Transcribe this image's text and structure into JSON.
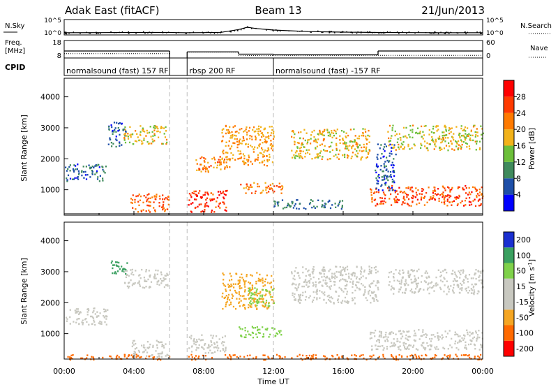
{
  "header": {
    "station": "Adak East (fitACF)",
    "beam": "Beam 13",
    "date": "21/Jun/2013"
  },
  "colors": {
    "frame": "#000000",
    "power_scale": [
      "#0000ff",
      "#1e4fa8",
      "#3f8a5c",
      "#6cbf3a",
      "#f2b21a",
      "#ff7a00",
      "#ff3a00",
      "#ff0000"
    ],
    "velocity_scale": [
      "#ff0000",
      "#ff6a00",
      "#f5a623",
      "#c8c8c0",
      "#c8c8c0",
      "#7fd14a",
      "#3aa060",
      "#1a2fd0"
    ]
  },
  "chart_data": [
    {
      "type": "line",
      "panel": "noise",
      "left_label": "N.Sky",
      "right_label": "N.Search",
      "left_ticks": [
        "10^5",
        "10^0"
      ],
      "right_ticks": [
        "10^5",
        "10^0"
      ],
      "x_hours": [
        0,
        2,
        4,
        6,
        7,
        8,
        9,
        10,
        10.5,
        11,
        12,
        14,
        16,
        18,
        20,
        22,
        24
      ],
      "y_norm": [
        0.14,
        0.15,
        0.16,
        0.16,
        0.14,
        0.15,
        0.17,
        0.35,
        0.5,
        0.42,
        0.32,
        0.22,
        0.18,
        0.16,
        0.15,
        0.14,
        0.14
      ]
    },
    {
      "type": "line",
      "panel": "frequency",
      "left_label_1": "Freq.",
      "left_label_2": "[MHz]",
      "right_label": "Nave",
      "left_ticks": [
        "18",
        "8"
      ],
      "right_ticks": [
        "60",
        "0"
      ],
      "freq_steps": [
        {
          "x0": 0,
          "x1": 6.05,
          "mhz": 12
        },
        {
          "x0": 7.05,
          "x1": 10.0,
          "mhz": 11.5
        },
        {
          "x0": 10.0,
          "x1": 12.0,
          "mhz": 10.2
        },
        {
          "x0": 12.0,
          "x1": 18.0,
          "mhz": 9.8
        },
        {
          "x0": 18.0,
          "x1": 24,
          "mhz": 12
        }
      ],
      "nave_steps": [
        {
          "x0": 0,
          "x1": 6.05,
          "v": 15
        },
        {
          "x0": 7.05,
          "x1": 10.0,
          "v": 20
        },
        {
          "x0": 10.0,
          "x1": 12.0,
          "v": 8
        },
        {
          "x0": 12.0,
          "x1": 24,
          "v": 9
        }
      ]
    },
    {
      "type": "table",
      "panel": "cpid",
      "label": "CPID",
      "segments": [
        {
          "x0": 0,
          "x1": 6.05,
          "text": "normalsound (fast) 157 RF"
        },
        {
          "x0": 7.05,
          "x1": 12.0,
          "text": "rbsp 200 RF"
        },
        {
          "x0": 12.0,
          "x1": 24,
          "text": "normalsound (fast) -157 RF"
        }
      ]
    },
    {
      "type": "heatmap",
      "panel": "power",
      "ylabel": "Slant Range [km]",
      "yticks": [
        1000,
        2000,
        3000,
        4000
      ],
      "ylim": [
        180,
        4600
      ],
      "xlim": [
        0,
        24
      ],
      "colorbar_label": "Power [dB]",
      "colorbar_ticks": [
        4,
        8,
        12,
        16,
        20,
        24,
        28
      ],
      "colorbar_range": [
        0,
        32
      ],
      "regions": [
        {
          "t0": 0.0,
          "t1": 2.5,
          "r0": 1300,
          "r1": 1850,
          "val": 7
        },
        {
          "t0": 2.5,
          "t1": 3.5,
          "r0": 2400,
          "r1": 3200,
          "val": 6
        },
        {
          "t0": 3.4,
          "t1": 6.0,
          "r0": 2500,
          "r1": 3100,
          "val": 18
        },
        {
          "t0": 3.8,
          "t1": 6.0,
          "r0": 300,
          "r1": 900,
          "val": 24
        },
        {
          "t0": 7.1,
          "t1": 9.3,
          "r0": 300,
          "r1": 1000,
          "val": 27
        },
        {
          "t0": 7.5,
          "t1": 9.5,
          "r0": 1600,
          "r1": 2100,
          "val": 22
        },
        {
          "t0": 9.0,
          "t1": 12.0,
          "r0": 1800,
          "r1": 3100,
          "val": 20
        },
        {
          "t0": 10.0,
          "t1": 12.5,
          "r0": 900,
          "r1": 1250,
          "val": 22
        },
        {
          "t0": 13.0,
          "t1": 17.5,
          "r0": 2000,
          "r1": 3000,
          "val": 18
        },
        {
          "t0": 12.0,
          "t1": 16.0,
          "r0": 400,
          "r1": 700,
          "val": 8
        },
        {
          "t0": 17.5,
          "t1": 24.0,
          "r0": 500,
          "r1": 1150,
          "val": 25
        },
        {
          "t0": 18.5,
          "t1": 24.0,
          "r0": 2300,
          "r1": 3100,
          "val": 17
        },
        {
          "t0": 17.8,
          "t1": 19.0,
          "r0": 1000,
          "r1": 2500,
          "val": 6
        }
      ]
    },
    {
      "type": "heatmap",
      "panel": "velocity",
      "ylabel": "Slant Range [km]",
      "yticks": [
        1000,
        2000,
        3000,
        4000
      ],
      "ylim": [
        180,
        4600
      ],
      "xlim": [
        0,
        24
      ],
      "xticks": [
        "00:00",
        "04:00",
        "08:00",
        "12:00",
        "16:00",
        "20:00",
        "00:00"
      ],
      "xlabel": "Time UT",
      "colorbar_label": "Velocity [m s",
      "colorbar_label_superscript": "-1",
      "colorbar_ticks": [
        "-200",
        "-100",
        "-50",
        "-15",
        "15",
        "50",
        "100",
        "200"
      ],
      "regions": [
        {
          "t0": 0.0,
          "t1": 2.5,
          "r0": 1300,
          "r1": 1850,
          "val": 0
        },
        {
          "t0": 2.6,
          "t1": 3.6,
          "r0": 2900,
          "r1": 3400,
          "val": 220
        },
        {
          "t0": 3.4,
          "t1": 6.0,
          "r0": 2500,
          "r1": 3100,
          "val": 5
        },
        {
          "t0": 3.8,
          "t1": 6.0,
          "r0": 250,
          "r1": 800,
          "val": 40
        },
        {
          "t0": 7.1,
          "t1": 9.3,
          "r0": 400,
          "r1": 1000,
          "val": 0
        },
        {
          "t0": 9.0,
          "t1": 12.0,
          "r0": 1800,
          "r1": 3000,
          "val": -30
        },
        {
          "t0": 10.5,
          "t1": 12.0,
          "r0": 1900,
          "r1": 2500,
          "val": 90
        },
        {
          "t0": 10.0,
          "t1": 12.5,
          "r0": 900,
          "r1": 1250,
          "val": 60
        },
        {
          "t0": 13.0,
          "t1": 18.0,
          "r0": 2000,
          "r1": 3200,
          "val": 10
        },
        {
          "t0": 17.5,
          "t1": 24.0,
          "r0": 500,
          "r1": 1150,
          "val": 0
        },
        {
          "t0": 18.5,
          "t1": 24.0,
          "r0": 2300,
          "r1": 3100,
          "val": 20
        },
        {
          "t0": 0.0,
          "t1": 24.0,
          "r0": 180,
          "r1": 350,
          "val": -60
        }
      ]
    }
  ]
}
